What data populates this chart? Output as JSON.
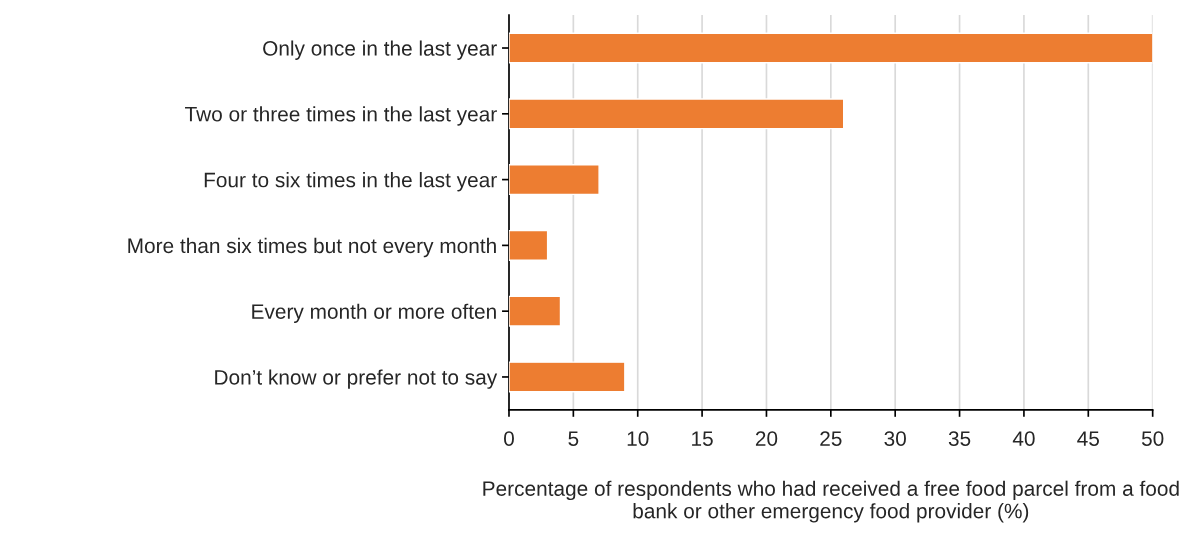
{
  "chart_data": {
    "type": "bar",
    "orientation": "horizontal",
    "categories": [
      "Only once in the last year",
      "Two or three times in the last year",
      "Four to six times in the last year",
      "More than six times but not every month",
      "Every month or more often",
      "Don’t know or prefer not to say"
    ],
    "values": [
      50,
      26,
      7,
      3,
      4,
      9
    ],
    "color": "#ed7d31",
    "xlabel": "Percentage of respondents who had received a free food parcel from a food bank or other emergency food provider (%)",
    "xlim": [
      0,
      50
    ],
    "xticks": [
      0,
      5,
      10,
      15,
      20,
      25,
      30,
      35,
      40,
      45,
      50
    ],
    "grid": "x"
  }
}
